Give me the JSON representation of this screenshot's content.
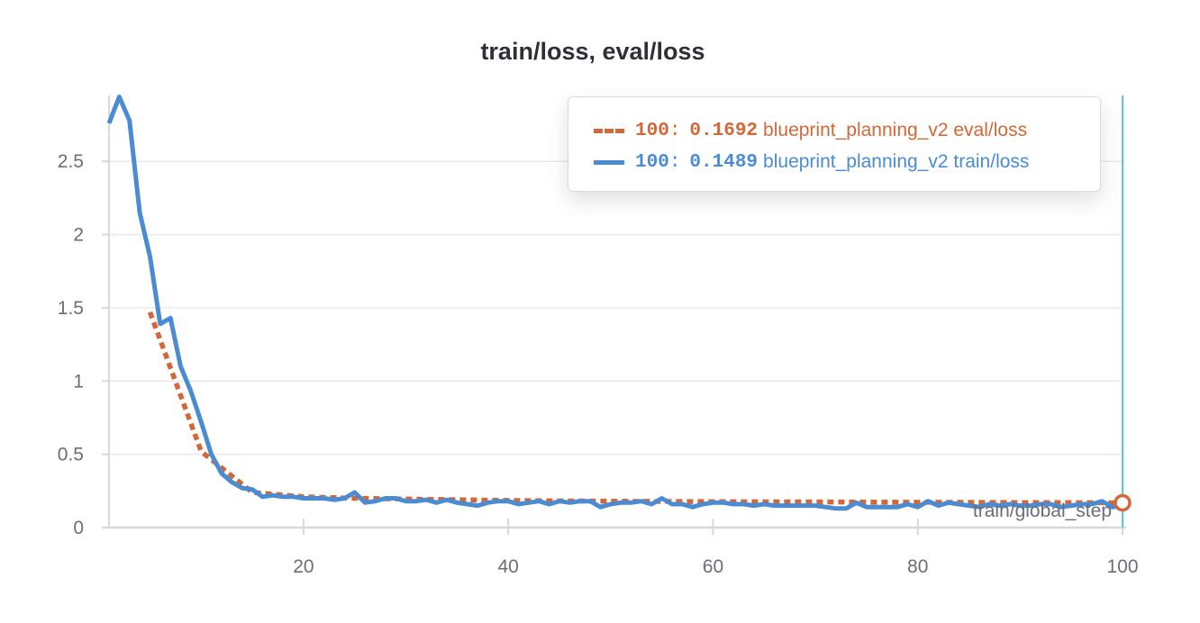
{
  "title": "train/loss, eval/loss",
  "colors": {
    "eval": "#d0683a",
    "train": "#4a8bd1",
    "cursor": "#5cc9d4",
    "grid": "#e8e9ec",
    "axis": "#d6d8dc"
  },
  "legend": [
    {
      "series": "eval",
      "step": "100",
      "sep": ":",
      "value": "0.1692",
      "label": "blueprint_planning_v2 eval/loss",
      "color": "#d0683a",
      "style": "dashed"
    },
    {
      "series": "train",
      "step": "100",
      "sep": ":",
      "value": "0.1489",
      "label": "blueprint_planning_v2 train/loss",
      "color": "#4a8bd1",
      "style": "solid"
    }
  ],
  "chart_data": {
    "type": "line",
    "title": "train/loss, eval/loss",
    "xlabel": "train/global_step",
    "ylabel": "",
    "xlim": [
      1,
      100
    ],
    "ylim": [
      0,
      2.95
    ],
    "xticks": [
      20,
      40,
      60,
      80,
      100
    ],
    "xtick_labels": [
      "20",
      "40",
      "60",
      "80",
      "100"
    ],
    "yticks": [
      0,
      0.5,
      1,
      1.5,
      2,
      2.5
    ],
    "ytick_labels": [
      "0",
      "0.5",
      "1",
      "1.5",
      "2",
      "2.5"
    ],
    "grid": true,
    "legend_position": "top-right",
    "hover_step": 100,
    "series": [
      {
        "name": "blueprint_planning_v2 eval/loss",
        "color": "#d0683a",
        "dash": "dotted",
        "x": [
          5,
          10,
          15,
          20,
          25,
          30,
          35,
          40,
          45,
          50,
          55,
          60,
          65,
          70,
          75,
          80,
          85,
          90,
          95,
          100
        ],
        "y": [
          1.47,
          0.52,
          0.24,
          0.21,
          0.2,
          0.195,
          0.19,
          0.185,
          0.182,
          0.18,
          0.178,
          0.177,
          0.176,
          0.175,
          0.174,
          0.173,
          0.172,
          0.171,
          0.17,
          0.1692
        ]
      },
      {
        "name": "blueprint_planning_v2 train/loss",
        "color": "#4a8bd1",
        "dash": "solid",
        "x": [
          1,
          2,
          3,
          4,
          5,
          6,
          7,
          8,
          9,
          10,
          11,
          12,
          13,
          14,
          15,
          16,
          17,
          18,
          19,
          20,
          21,
          22,
          23,
          24,
          25,
          26,
          27,
          28,
          29,
          30,
          31,
          32,
          33,
          34,
          35,
          36,
          37,
          38,
          39,
          40,
          41,
          42,
          43,
          44,
          45,
          46,
          47,
          48,
          49,
          50,
          51,
          52,
          53,
          54,
          55,
          56,
          57,
          58,
          59,
          60,
          61,
          62,
          63,
          64,
          65,
          66,
          67,
          68,
          69,
          70,
          71,
          72,
          73,
          74,
          75,
          76,
          77,
          78,
          79,
          80,
          81,
          82,
          83,
          84,
          85,
          86,
          87,
          88,
          89,
          90,
          91,
          92,
          93,
          94,
          95,
          96,
          97,
          98,
          99,
          100
        ],
        "y": [
          2.76,
          2.94,
          2.78,
          2.15,
          1.85,
          1.39,
          1.43,
          1.1,
          0.93,
          0.72,
          0.5,
          0.37,
          0.31,
          0.27,
          0.26,
          0.21,
          0.22,
          0.21,
          0.21,
          0.2,
          0.2,
          0.2,
          0.19,
          0.2,
          0.24,
          0.17,
          0.18,
          0.2,
          0.2,
          0.18,
          0.18,
          0.19,
          0.17,
          0.19,
          0.17,
          0.16,
          0.15,
          0.17,
          0.18,
          0.18,
          0.16,
          0.17,
          0.18,
          0.16,
          0.18,
          0.17,
          0.18,
          0.18,
          0.14,
          0.16,
          0.17,
          0.17,
          0.18,
          0.16,
          0.2,
          0.16,
          0.16,
          0.14,
          0.16,
          0.17,
          0.17,
          0.16,
          0.16,
          0.15,
          0.16,
          0.15,
          0.15,
          0.15,
          0.15,
          0.15,
          0.14,
          0.13,
          0.13,
          0.17,
          0.14,
          0.14,
          0.14,
          0.14,
          0.16,
          0.14,
          0.18,
          0.15,
          0.17,
          0.16,
          0.15,
          0.14,
          0.16,
          0.15,
          0.16,
          0.15,
          0.15,
          0.16,
          0.16,
          0.14,
          0.15,
          0.16,
          0.16,
          0.18,
          0.14,
          0.1489
        ]
      }
    ]
  }
}
